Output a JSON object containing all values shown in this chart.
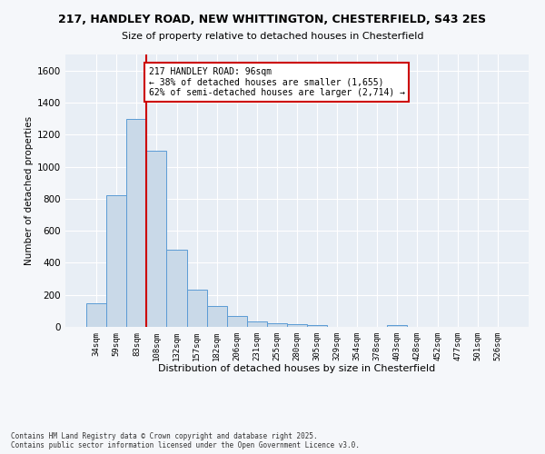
{
  "title_line1": "217, HANDLEY ROAD, NEW WHITTINGTON, CHESTERFIELD, S43 2ES",
  "title_line2": "Size of property relative to detached houses in Chesterfield",
  "xlabel": "Distribution of detached houses by size in Chesterfield",
  "ylabel": "Number of detached properties",
  "bar_color": "#c9d9e8",
  "bar_edge_color": "#5b9bd5",
  "bar_values": [
    150,
    820,
    1300,
    1100,
    480,
    230,
    130,
    70,
    35,
    20,
    15,
    10,
    0,
    0,
    0,
    10,
    0,
    0,
    0,
    0,
    0
  ],
  "bar_labels": [
    "34sqm",
    "59sqm",
    "83sqm",
    "108sqm",
    "132sqm",
    "157sqm",
    "182sqm",
    "206sqm",
    "231sqm",
    "255sqm",
    "280sqm",
    "305sqm",
    "329sqm",
    "354sqm",
    "378sqm",
    "403sqm",
    "428sqm",
    "452sqm",
    "477sqm",
    "501sqm",
    "526sqm"
  ],
  "ylim": [
    0,
    1700
  ],
  "yticks": [
    0,
    200,
    400,
    600,
    800,
    1000,
    1200,
    1400,
    1600
  ],
  "vline_color": "#cc0000",
  "annotation_text": "217 HANDLEY ROAD: 96sqm\n← 38% of detached houses are smaller (1,655)\n62% of semi-detached houses are larger (2,714) →",
  "annotation_box_color": "#ffffff",
  "annotation_box_edge": "#cc0000",
  "plot_bg_color": "#e8eef5",
  "fig_bg_color": "#f5f7fa",
  "grid_color": "#ffffff",
  "footer": "Contains HM Land Registry data © Crown copyright and database right 2025.\nContains public sector information licensed under the Open Government Licence v3.0."
}
